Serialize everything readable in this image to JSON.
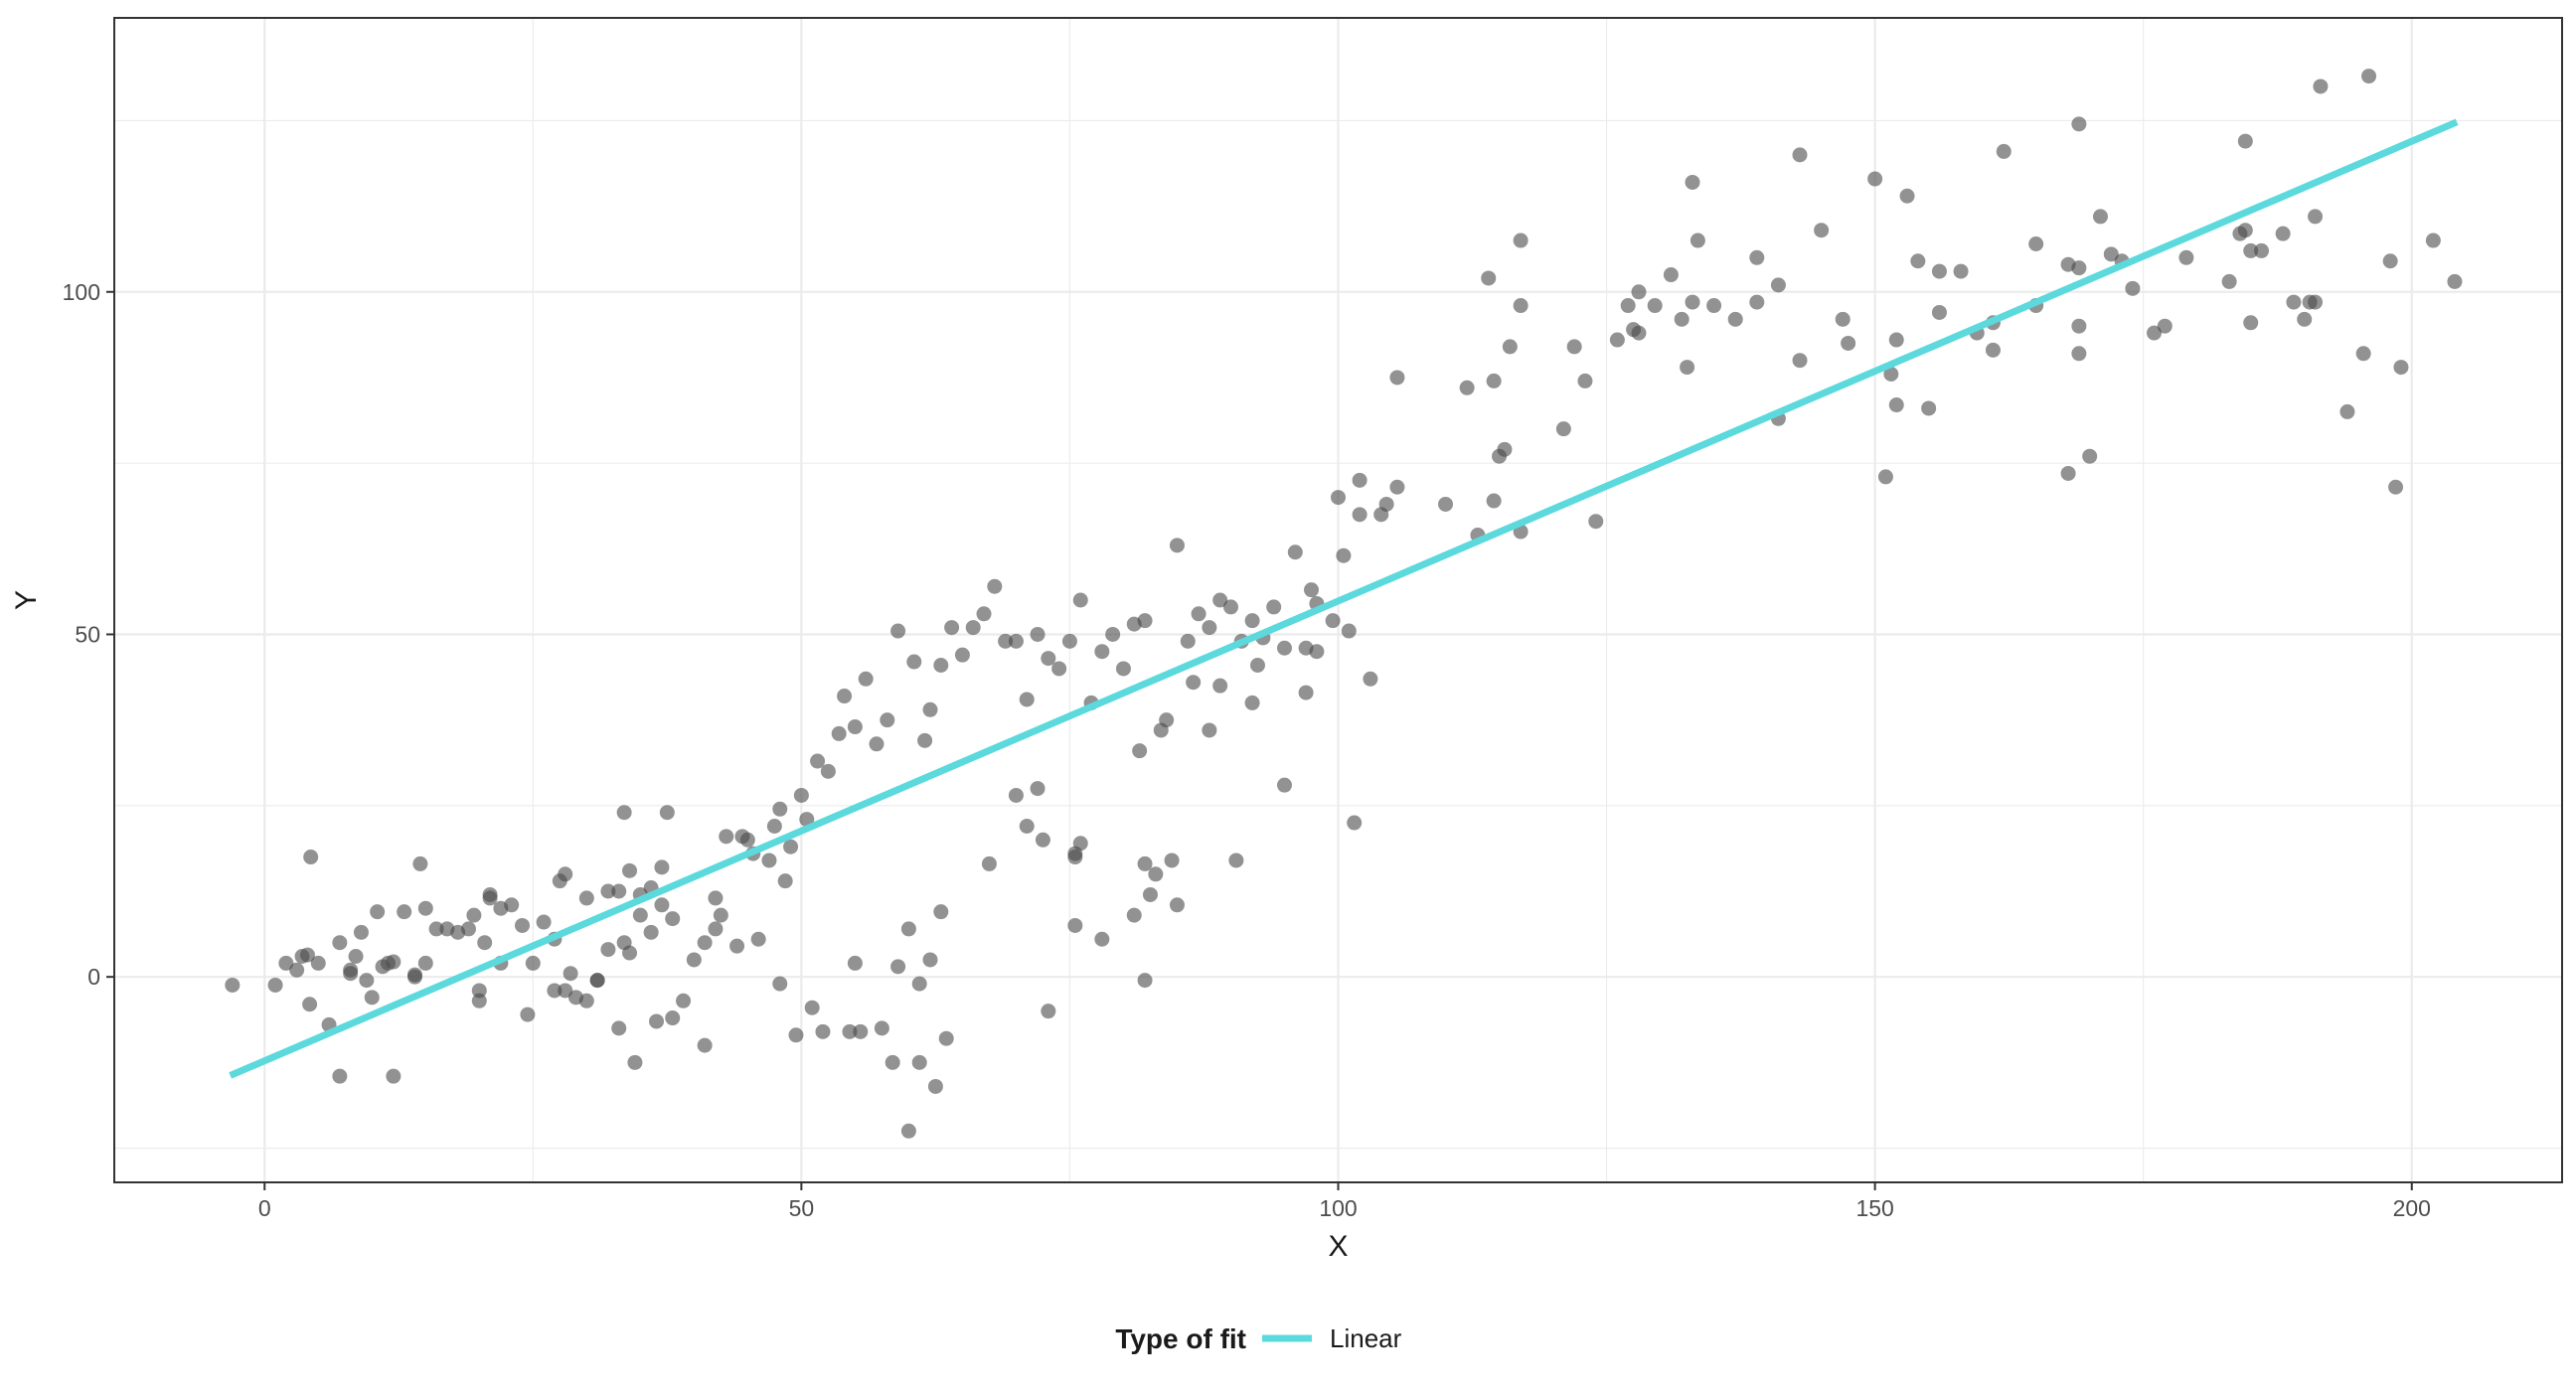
{
  "chart_data": {
    "type": "scatter",
    "xlabel": "X",
    "ylabel": "Y",
    "xlim": [
      -14,
      214
    ],
    "ylim": [
      -30,
      140
    ],
    "x_ticks": [
      0,
      50,
      100,
      150,
      200
    ],
    "y_ticks": [
      0,
      50,
      100
    ],
    "grid": true,
    "legend": {
      "position": "bottom",
      "title": "Type of fit",
      "entries": [
        {
          "label": "Linear",
          "color": "#5bd9dc"
        }
      ]
    },
    "colors": {
      "points": "#4a4a4a",
      "fit_line": "#5bd9dc",
      "grid": "#ebebeb",
      "panel_border": "#333333"
    },
    "series": [
      {
        "kind": "points",
        "points": [
          [
            -3,
            -1.2
          ],
          [
            1,
            -1.2
          ],
          [
            2,
            2
          ],
          [
            3,
            1
          ],
          [
            3.5,
            3
          ],
          [
            4,
            3.2
          ],
          [
            4.2,
            -4
          ],
          [
            4.3,
            17.5
          ],
          [
            5,
            2
          ],
          [
            6,
            -7
          ],
          [
            7,
            5
          ],
          [
            7,
            -14.5
          ],
          [
            8,
            1
          ],
          [
            8,
            0.5
          ],
          [
            8.5,
            3
          ],
          [
            9,
            6.5
          ],
          [
            9.5,
            -0.5
          ],
          [
            10,
            -3
          ],
          [
            10.5,
            9.5
          ],
          [
            11,
            1.5
          ],
          [
            11.5,
            2
          ],
          [
            12,
            2.2
          ],
          [
            12,
            -14.5
          ],
          [
            13,
            9.5
          ],
          [
            14,
            0.3
          ],
          [
            14,
            0
          ],
          [
            14.5,
            16.5
          ],
          [
            15,
            10
          ],
          [
            15,
            2
          ],
          [
            16,
            7
          ],
          [
            17,
            7
          ],
          [
            18,
            6.5
          ],
          [
            19,
            7
          ],
          [
            19.5,
            9
          ],
          [
            20,
            -2
          ],
          [
            20,
            -3.5
          ],
          [
            20.5,
            5
          ],
          [
            21,
            11.5
          ],
          [
            21,
            12
          ],
          [
            22,
            2
          ],
          [
            22,
            10
          ],
          [
            23,
            10.5
          ],
          [
            24,
            7.5
          ],
          [
            24.5,
            -5.5
          ],
          [
            25,
            2
          ],
          [
            26,
            8
          ],
          [
            27,
            5.5
          ],
          [
            27,
            -2
          ],
          [
            27.5,
            14
          ],
          [
            28,
            15
          ],
          [
            28,
            -2
          ],
          [
            28.5,
            0.5
          ],
          [
            29,
            -3
          ],
          [
            30,
            -3.5
          ],
          [
            30,
            11.5
          ],
          [
            31,
            -0.5
          ],
          [
            31,
            -0.5
          ],
          [
            32,
            12.5
          ],
          [
            32,
            4
          ],
          [
            33,
            -7.5
          ],
          [
            33,
            12.5
          ],
          [
            33.5,
            24
          ],
          [
            33.5,
            5
          ],
          [
            34,
            15.5
          ],
          [
            34,
            3.5
          ],
          [
            34.5,
            -12.5
          ],
          [
            35,
            12
          ],
          [
            35,
            9
          ],
          [
            36,
            13
          ],
          [
            36,
            6.5
          ],
          [
            36.5,
            -6.5
          ],
          [
            37,
            10.5
          ],
          [
            37,
            16
          ],
          [
            37.5,
            24
          ],
          [
            38,
            8.5
          ],
          [
            38,
            -6
          ],
          [
            39,
            -3.5
          ],
          [
            40,
            2.5
          ],
          [
            41,
            5
          ],
          [
            41,
            -10
          ],
          [
            42,
            11.5
          ],
          [
            42,
            7
          ],
          [
            42.5,
            9
          ],
          [
            43,
            20.5
          ],
          [
            44,
            4.5
          ],
          [
            44.5,
            20.5
          ],
          [
            45,
            20
          ],
          [
            45.5,
            18
          ],
          [
            46,
            5.5
          ],
          [
            47,
            17
          ],
          [
            47.5,
            22
          ],
          [
            48,
            24.5
          ],
          [
            48,
            -1
          ],
          [
            48.5,
            14
          ],
          [
            49,
            19
          ],
          [
            49.5,
            -8.5
          ],
          [
            50,
            26.5
          ],
          [
            50.5,
            23
          ],
          [
            51,
            -4.5
          ],
          [
            51.5,
            31.5
          ],
          [
            52,
            -8
          ],
          [
            52.5,
            30
          ],
          [
            53.5,
            35.5
          ],
          [
            54,
            41
          ],
          [
            54.5,
            -8
          ],
          [
            55,
            2
          ],
          [
            55,
            36.5
          ],
          [
            55.5,
            -8
          ],
          [
            56,
            43.5
          ],
          [
            57,
            34
          ],
          [
            57.5,
            -7.5
          ],
          [
            58,
            37.5
          ],
          [
            58.5,
            -12.5
          ],
          [
            59,
            1.5
          ],
          [
            59,
            50.5
          ],
          [
            60,
            7
          ],
          [
            60,
            -22.5
          ],
          [
            60.5,
            46
          ],
          [
            61,
            -12.5
          ],
          [
            61,
            -1
          ],
          [
            61.5,
            34.5
          ],
          [
            62,
            39
          ],
          [
            62,
            2.5
          ],
          [
            62.5,
            -16
          ],
          [
            63,
            9.5
          ],
          [
            63,
            45.5
          ],
          [
            63.5,
            -9
          ],
          [
            64,
            51
          ],
          [
            65,
            47
          ],
          [
            66,
            51
          ],
          [
            67,
            53
          ],
          [
            67.5,
            16.5
          ],
          [
            68,
            57
          ],
          [
            69,
            49
          ],
          [
            70,
            26.5
          ],
          [
            70,
            49
          ],
          [
            71,
            22
          ],
          [
            71,
            40.5
          ],
          [
            72,
            27.5
          ],
          [
            72,
            50
          ],
          [
            72.5,
            20
          ],
          [
            73,
            -5
          ],
          [
            73,
            46.5
          ],
          [
            74,
            45
          ],
          [
            75,
            49
          ],
          [
            75.5,
            17.5
          ],
          [
            75.5,
            18
          ],
          [
            75.5,
            7.5
          ],
          [
            76,
            55
          ],
          [
            76,
            19.5
          ],
          [
            77,
            40
          ],
          [
            78,
            47.5
          ],
          [
            78,
            5.5
          ],
          [
            79,
            50
          ],
          [
            80,
            45
          ],
          [
            81,
            51.5
          ],
          [
            81,
            9
          ],
          [
            81.5,
            33
          ],
          [
            82,
            16.5
          ],
          [
            82,
            52
          ],
          [
            82,
            -0.5
          ],
          [
            82.5,
            12
          ],
          [
            83,
            15
          ],
          [
            83.5,
            36
          ],
          [
            84,
            37.5
          ],
          [
            84.5,
            17
          ],
          [
            85,
            10.5
          ],
          [
            85,
            63
          ],
          [
            86,
            49
          ],
          [
            86.5,
            43
          ],
          [
            87,
            53
          ],
          [
            88,
            36
          ],
          [
            88,
            51
          ],
          [
            89,
            55
          ],
          [
            89,
            42.5
          ],
          [
            90,
            54
          ],
          [
            90.5,
            17
          ],
          [
            91,
            49
          ],
          [
            92,
            52
          ],
          [
            92,
            40
          ],
          [
            92.5,
            45.5
          ],
          [
            93,
            49.5
          ],
          [
            94,
            54
          ],
          [
            95,
            28
          ],
          [
            95,
            48
          ],
          [
            96,
            62
          ],
          [
            97,
            41.5
          ],
          [
            97,
            48
          ],
          [
            97.5,
            56.5
          ],
          [
            98,
            47.5
          ],
          [
            98,
            54.5
          ],
          [
            99.5,
            52
          ],
          [
            100,
            70
          ],
          [
            100.5,
            61.5
          ],
          [
            101,
            50.5
          ],
          [
            101.5,
            22.5
          ],
          [
            102,
            67.5
          ],
          [
            102,
            72.5
          ],
          [
            103,
            43.5
          ],
          [
            104,
            67.5
          ],
          [
            104.5,
            69
          ],
          [
            105.5,
            71.5
          ],
          [
            105.5,
            87.5
          ],
          [
            110,
            69
          ],
          [
            112,
            86
          ],
          [
            113,
            64.5
          ],
          [
            114,
            102
          ],
          [
            114.5,
            87
          ],
          [
            114.5,
            69.5
          ],
          [
            115,
            76
          ],
          [
            115.5,
            77
          ],
          [
            116,
            92
          ],
          [
            117,
            98
          ],
          [
            117,
            65
          ],
          [
            117,
            107.5
          ],
          [
            121,
            80
          ],
          [
            122,
            92
          ],
          [
            123,
            87
          ],
          [
            124,
            66.5
          ],
          [
            126,
            93
          ],
          [
            127,
            98
          ],
          [
            127.5,
            94.5
          ],
          [
            128,
            94
          ],
          [
            128,
            100
          ],
          [
            129.5,
            98
          ],
          [
            131,
            102.5
          ],
          [
            132,
            96
          ],
          [
            132.5,
            89
          ],
          [
            133,
            116
          ],
          [
            133,
            98.5
          ],
          [
            133.5,
            107.5
          ],
          [
            135,
            98
          ],
          [
            137,
            96
          ],
          [
            139,
            98.5
          ],
          [
            139,
            105
          ],
          [
            141,
            101
          ],
          [
            141,
            81.5
          ],
          [
            143,
            120
          ],
          [
            143,
            90
          ],
          [
            145,
            109
          ],
          [
            147,
            96
          ],
          [
            147.5,
            92.5
          ],
          [
            150,
            116.5
          ],
          [
            151,
            73
          ],
          [
            151.5,
            88
          ],
          [
            152,
            83.5
          ],
          [
            152,
            93
          ],
          [
            153,
            114
          ],
          [
            154,
            104.5
          ],
          [
            155,
            83
          ],
          [
            156,
            103
          ],
          [
            156,
            97
          ],
          [
            158,
            103
          ],
          [
            159.5,
            94
          ],
          [
            161,
            95.5
          ],
          [
            161,
            91.5
          ],
          [
            162,
            120.5
          ],
          [
            165,
            98
          ],
          [
            165,
            107
          ],
          [
            168,
            73.5
          ],
          [
            168,
            104
          ],
          [
            169,
            124.5
          ],
          [
            169,
            95
          ],
          [
            169,
            91
          ],
          [
            169,
            103.5
          ],
          [
            170,
            76
          ],
          [
            171,
            111
          ],
          [
            172,
            105.5
          ],
          [
            173,
            104.5
          ],
          [
            174,
            100.5
          ],
          [
            176,
            94
          ],
          [
            177,
            95
          ],
          [
            179,
            105
          ],
          [
            183,
            101.5
          ],
          [
            184,
            108.5
          ],
          [
            184.5,
            109
          ],
          [
            184.5,
            122
          ],
          [
            185,
            95.5
          ],
          [
            185,
            106
          ],
          [
            186,
            106
          ],
          [
            188,
            108.5
          ],
          [
            189,
            98.5
          ],
          [
            190,
            96
          ],
          [
            190.5,
            98.5
          ],
          [
            191,
            111
          ],
          [
            191,
            98.5
          ],
          [
            191.5,
            130
          ],
          [
            194,
            82.5
          ],
          [
            195.5,
            91
          ],
          [
            196,
            131.5
          ],
          [
            198,
            104.5
          ],
          [
            198.5,
            71.5
          ],
          [
            199,
            89
          ],
          [
            202,
            107.5
          ],
          [
            204,
            101.5
          ]
        ]
      },
      {
        "kind": "line",
        "name": "Linear",
        "points": [
          [
            -3.2,
            -14.4
          ],
          [
            204.2,
            124.8
          ]
        ]
      }
    ]
  }
}
